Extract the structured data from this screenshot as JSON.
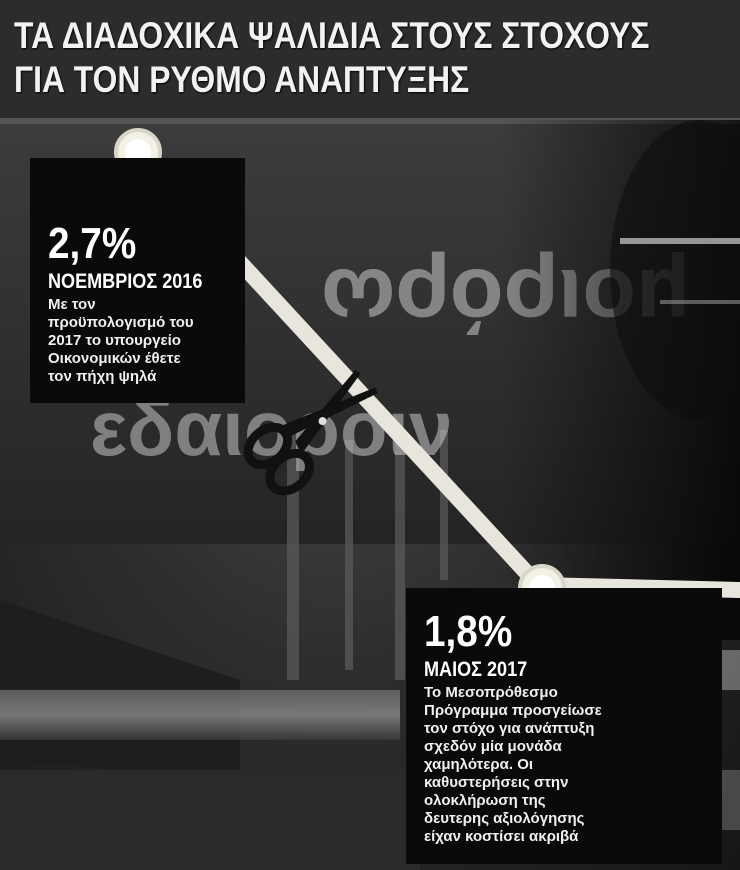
{
  "headline": {
    "line1": "ΤΑ ΔΙΑΔΟΧΙΚΑ ΨΑΛΙΔΙΑ ΣΤΟΥΣ ΣΤΟΧΟΥΣ",
    "line2": "ΓΙΑ ΤΟΝ ΡΥΘΜΟ ΑΝΑΠΤΥΞΗΣ"
  },
  "points": [
    {
      "value": "2,7%",
      "date": "ΝΟΕΜΒΡΙΟΣ 2016",
      "description": [
        "Με τον",
        "προϋπολογισμό του",
        "2017 το υπουργείο",
        "Οικονομικών έθετε",
        "τον πήχη ψηλά"
      ]
    },
    {
      "value": "1,8%",
      "date": "ΜΑΙΟΣ 2017",
      "description": [
        "Το Μεσοπρόθεσμο",
        "Πρόγραμμα προσγείωσε",
        "τον στόχο για ανάπτυξη",
        "σχεδόν μία μονάδα",
        "χαμηλότερα. Οι",
        "καθυστερήσεις στην",
        "ολοκλήρωση της",
        "δευτερης αξιολόγησης",
        "είχαν κοστίσει ακριβά"
      ]
    }
  ],
  "background_sign_text": {
    "upper": "μοιρόρω",
    "lower": "εδαιοροιν"
  },
  "colors": {
    "line": "#e8e6dc",
    "box": "#0a0a0a",
    "text": "#ffffff"
  },
  "icons": [
    "scissors-icon"
  ]
}
